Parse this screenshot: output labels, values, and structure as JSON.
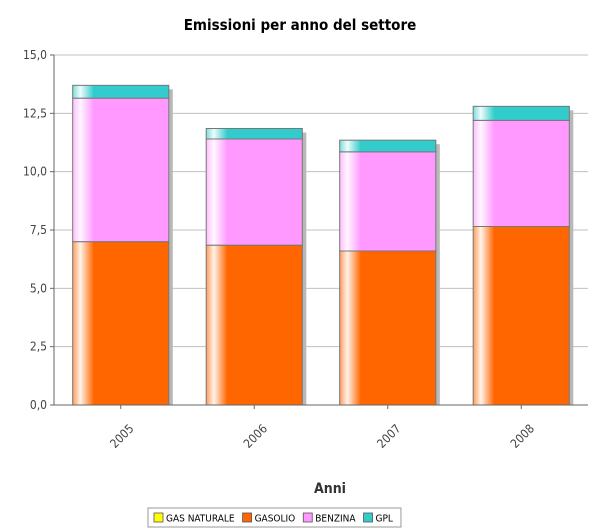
{
  "chart_data": {
    "type": "bar",
    "stacked": true,
    "title": "Emissioni per anno del settore",
    "xlabel": "Anni",
    "ylabel": "",
    "categories": [
      "2005",
      "2006",
      "2007",
      "2008"
    ],
    "series": [
      {
        "name": "GAS NATURALE",
        "color": "#ffff00",
        "values": [
          0.0,
          0.0,
          0.0,
          0.0
        ]
      },
      {
        "name": "GASOLIO",
        "color": "#ff6600",
        "values": [
          7.0,
          6.85,
          6.6,
          7.65
        ]
      },
      {
        "name": "BENZINA",
        "color": "#ff99ff",
        "values": [
          6.15,
          4.55,
          4.25,
          4.55
        ]
      },
      {
        "name": "GPL",
        "color": "#33cccc",
        "values": [
          0.55,
          0.45,
          0.5,
          0.6
        ]
      }
    ],
    "ylim": [
      0,
      15.0
    ],
    "yticks": [
      "0,0",
      "2,5",
      "5,0",
      "7,5",
      "10,0",
      "12,5",
      "15,0"
    ],
    "grid": true,
    "legend_position": "bottom"
  }
}
